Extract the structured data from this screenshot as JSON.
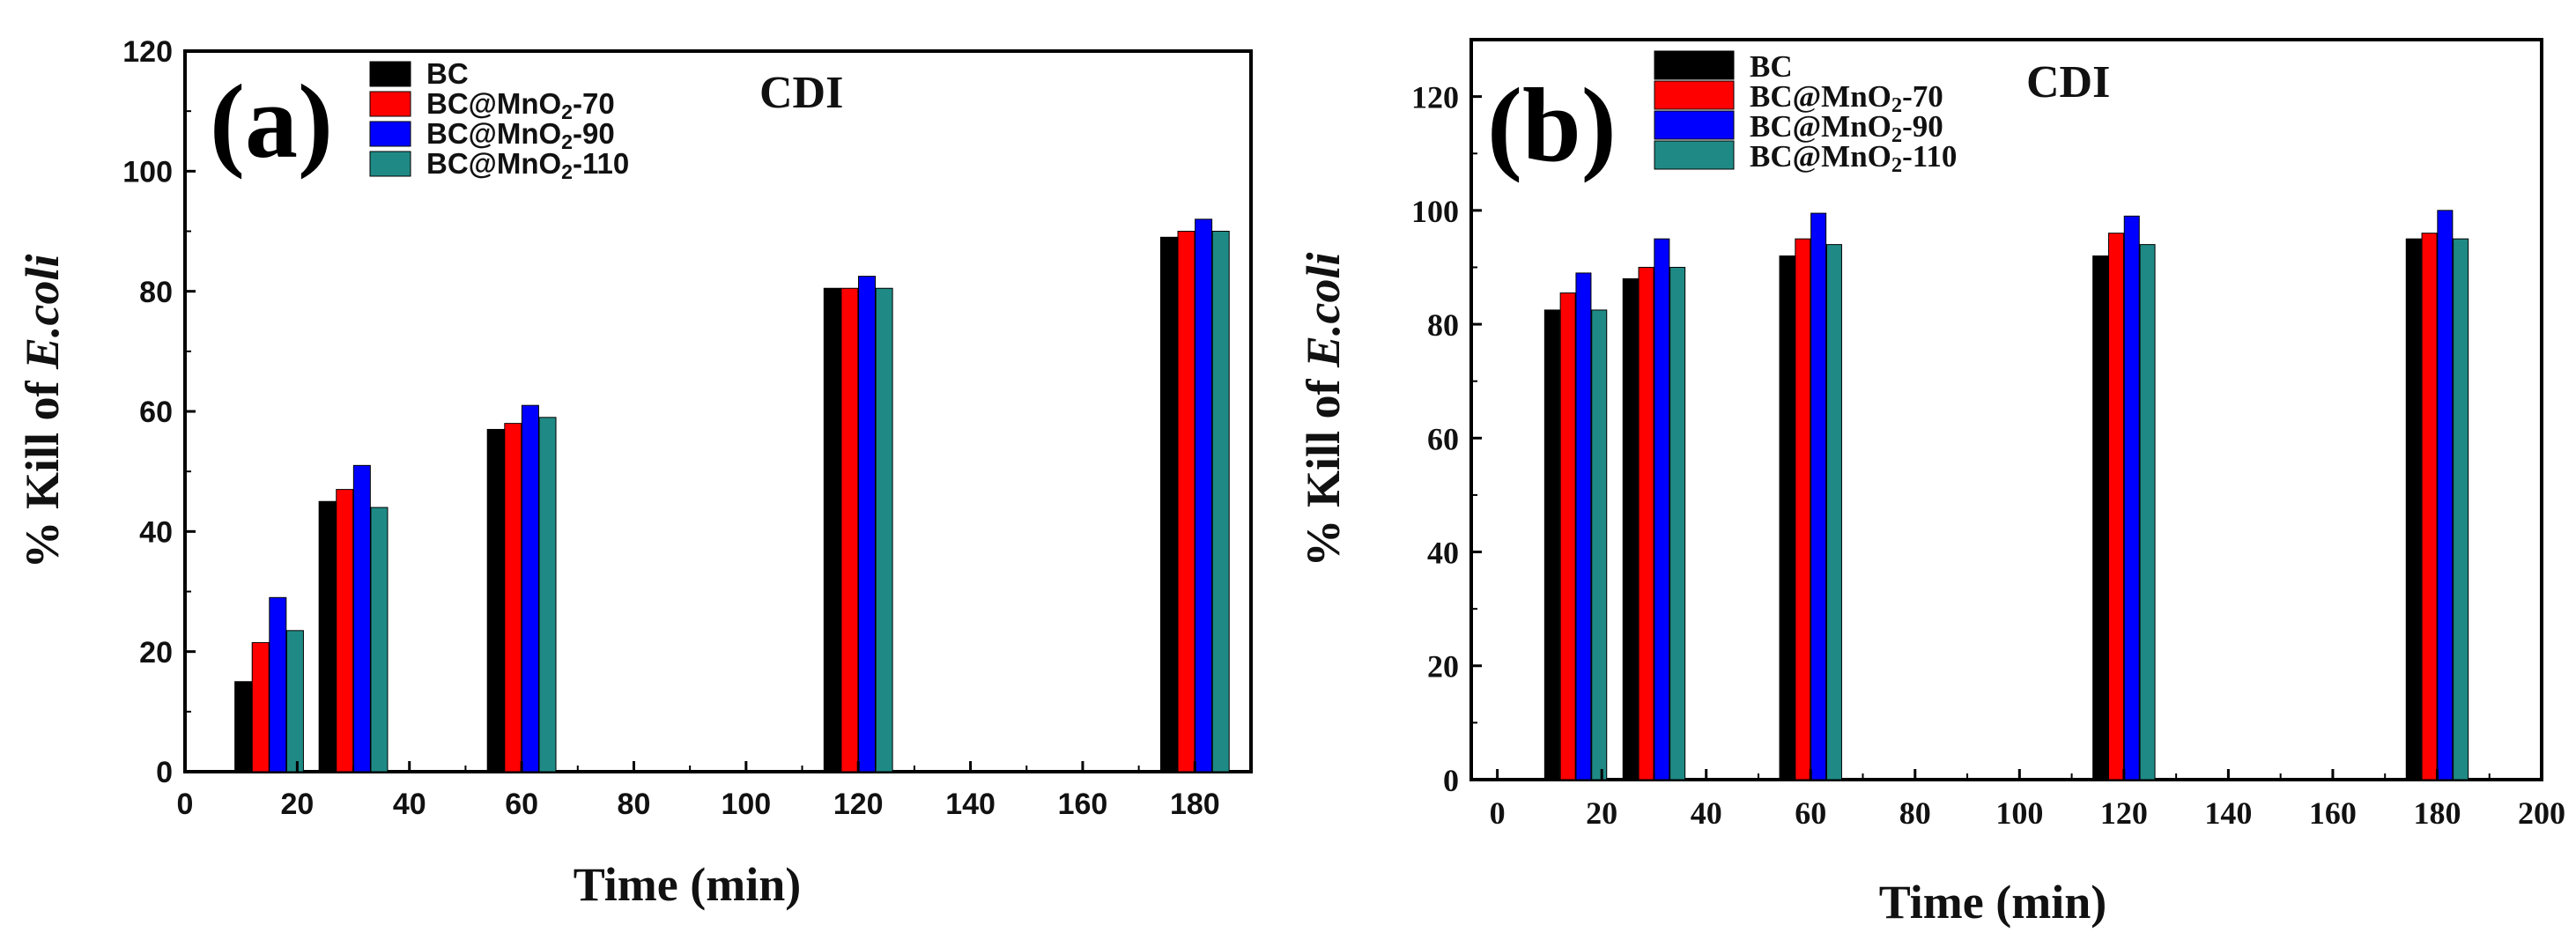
{
  "colors": [
    "#000000",
    "#ff0000",
    "#0000ff",
    "#1f8a85"
  ],
  "chart_data": [
    {
      "type": "bar",
      "panel_label": "(a)",
      "annotation": "CDI",
      "xlabel": "Time (min)",
      "ylabel_prefix": "% Kill of ",
      "ylabel_italic": "E.coli",
      "xlim": [
        0,
        190
      ],
      "ylim": [
        0,
        120
      ],
      "xticks": [
        "0",
        "20",
        "40",
        "60",
        "80",
        "100",
        "120",
        "140",
        "160",
        "180"
      ],
      "yticks": [
        "0",
        "20",
        "40",
        "60",
        "80",
        "100",
        "120"
      ],
      "x": [
        15,
        30,
        60,
        120,
        180
      ],
      "series": [
        {
          "name": "BC",
          "values": [
            15,
            45,
            57,
            80.5,
            89
          ]
        },
        {
          "name": "BC@MnO2-70",
          "values": [
            21.5,
            47,
            58,
            80.5,
            90
          ]
        },
        {
          "name": "BC@MnO2-90",
          "values": [
            29,
            51,
            61,
            82.5,
            92
          ]
        },
        {
          "name": "BC@MnO2-110",
          "values": [
            23.5,
            44,
            59,
            80.5,
            90
          ]
        }
      ]
    },
    {
      "type": "bar",
      "panel_label": "(b)",
      "annotation": "CDI",
      "xlabel": "Time (min)",
      "ylabel_prefix": "% Kill of ",
      "ylabel_italic": "E.coli",
      "xlim": [
        -5,
        200
      ],
      "ylim": [
        0,
        130
      ],
      "xticks": [
        "0",
        "20",
        "40",
        "60",
        "80",
        "100",
        "120",
        "140",
        "160",
        "180",
        "200"
      ],
      "yticks": [
        "0",
        "20",
        "40",
        "60",
        "80",
        "100",
        "120"
      ],
      "x": [
        15,
        30,
        60,
        120,
        180
      ],
      "series": [
        {
          "name": "BC",
          "values": [
            82.5,
            88,
            92,
            92,
            95
          ]
        },
        {
          "name": "BC@MnO2-70",
          "values": [
            85.5,
            90,
            95,
            96,
            96
          ]
        },
        {
          "name": "BC@MnO2-90",
          "values": [
            89,
            95,
            99.5,
            99,
            100
          ]
        },
        {
          "name": "BC@MnO2-110",
          "values": [
            82.5,
            90,
            94,
            94,
            95
          ]
        }
      ]
    }
  ]
}
